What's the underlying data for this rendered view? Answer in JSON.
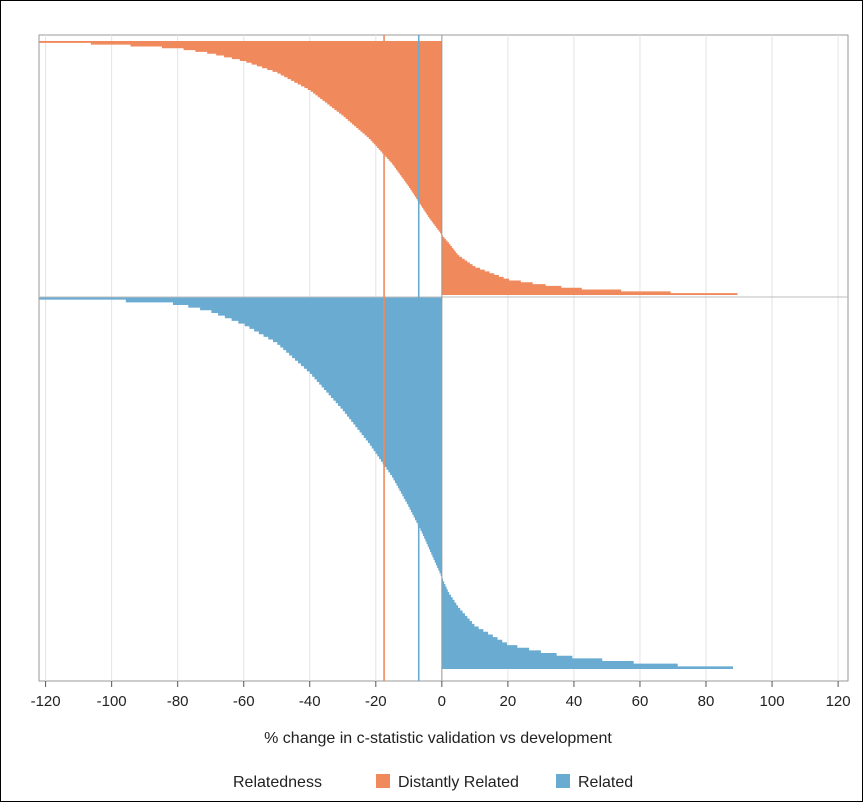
{
  "chart_data": {
    "type": "area",
    "title": "",
    "xlabel": "% change in c-statistic validation vs development",
    "ylabel": "",
    "xlim": [
      -122,
      123
    ],
    "xticks": [
      -120,
      -100,
      -80,
      -60,
      -40,
      -20,
      0,
      20,
      40,
      60,
      80,
      100,
      120
    ],
    "grid": true,
    "legend": {
      "title": "Relatedness",
      "placement": "bottom",
      "entries": [
        "Distantly Related",
        "Related"
      ]
    },
    "series": [
      {
        "name": "Distantly Related",
        "color": "#f08a5d",
        "panel": "top",
        "median_line": -17.5,
        "comment_shape": "sorted % change values across ordered validations; y = rank fraction (0 = first, 1 = last)",
        "points": [
          [
            -122,
            0.0
          ],
          [
            -100,
            0.01
          ],
          [
            -80,
            0.025
          ],
          [
            -70,
            0.045
          ],
          [
            -60,
            0.075
          ],
          [
            -50,
            0.12
          ],
          [
            -40,
            0.19
          ],
          [
            -30,
            0.29
          ],
          [
            -22,
            0.38
          ],
          [
            -15,
            0.48
          ],
          [
            -10,
            0.57
          ],
          [
            -7,
            0.63
          ],
          [
            -4,
            0.69
          ],
          [
            -2,
            0.725
          ],
          [
            0,
            0.76
          ],
          [
            2,
            0.79
          ],
          [
            5,
            0.84
          ],
          [
            10,
            0.885
          ],
          [
            20,
            0.935
          ],
          [
            30,
            0.955
          ],
          [
            40,
            0.97
          ],
          [
            60,
            0.982
          ],
          [
            80,
            0.99
          ],
          [
            100,
            0.996
          ],
          [
            122,
            1.0
          ]
        ]
      },
      {
        "name": "Related",
        "color": "#69abd1",
        "panel": "bottom",
        "median_line": -7,
        "points": [
          [
            -122,
            0.0
          ],
          [
            -100,
            0.005
          ],
          [
            -80,
            0.015
          ],
          [
            -70,
            0.035
          ],
          [
            -60,
            0.07
          ],
          [
            -50,
            0.12
          ],
          [
            -40,
            0.2
          ],
          [
            -30,
            0.3
          ],
          [
            -22,
            0.39
          ],
          [
            -15,
            0.48
          ],
          [
            -10,
            0.56
          ],
          [
            -6,
            0.63
          ],
          [
            -3,
            0.69
          ],
          [
            -1,
            0.73
          ],
          [
            0,
            0.75
          ],
          [
            2,
            0.79
          ],
          [
            5,
            0.83
          ],
          [
            10,
            0.88
          ],
          [
            20,
            0.93
          ],
          [
            30,
            0.95
          ],
          [
            40,
            0.965
          ],
          [
            60,
            0.98
          ],
          [
            80,
            0.99
          ],
          [
            100,
            0.997
          ],
          [
            122,
            1.0
          ]
        ]
      }
    ]
  }
}
